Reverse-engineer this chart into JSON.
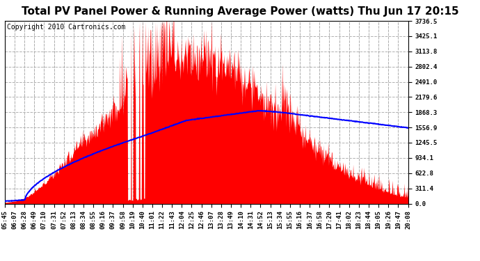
{
  "title": "Total PV Panel Power & Running Average Power (watts) Thu Jun 17 20:15",
  "copyright": "Copyright 2010 Cartronics.com",
  "bg_color": "#ffffff",
  "plot_bg_color": "#ffffff",
  "y_max": 3736.5,
  "y_min": 0.0,
  "ytick_labels": [
    "0.0",
    "311.4",
    "622.8",
    "934.1",
    "1245.5",
    "1556.9",
    "1868.3",
    "2179.6",
    "2491.0",
    "2802.4",
    "3113.8",
    "3425.1",
    "3736.5"
  ],
  "ytick_values": [
    0.0,
    311.4,
    622.8,
    934.1,
    1245.5,
    1556.9,
    1868.3,
    2179.6,
    2491.0,
    2802.4,
    3113.8,
    3425.1,
    3736.5
  ],
  "xtick_labels": [
    "05:45",
    "06:07",
    "06:28",
    "06:49",
    "07:10",
    "07:31",
    "07:52",
    "08:13",
    "08:34",
    "08:55",
    "09:16",
    "09:37",
    "09:58",
    "10:19",
    "10:40",
    "11:01",
    "11:22",
    "11:43",
    "12:04",
    "12:25",
    "12:46",
    "13:07",
    "13:28",
    "13:49",
    "14:10",
    "14:31",
    "14:52",
    "15:13",
    "15:34",
    "15:55",
    "16:16",
    "16:37",
    "16:58",
    "17:20",
    "17:41",
    "18:02",
    "18:23",
    "18:44",
    "19:05",
    "19:26",
    "19:47",
    "20:08"
  ],
  "fill_color": "#ff0000",
  "line_color": "#0000ff",
  "grid_color": "#b0b0b0",
  "title_fontsize": 11,
  "copyright_fontsize": 7,
  "tick_fontsize": 6.5,
  "n_points": 860
}
